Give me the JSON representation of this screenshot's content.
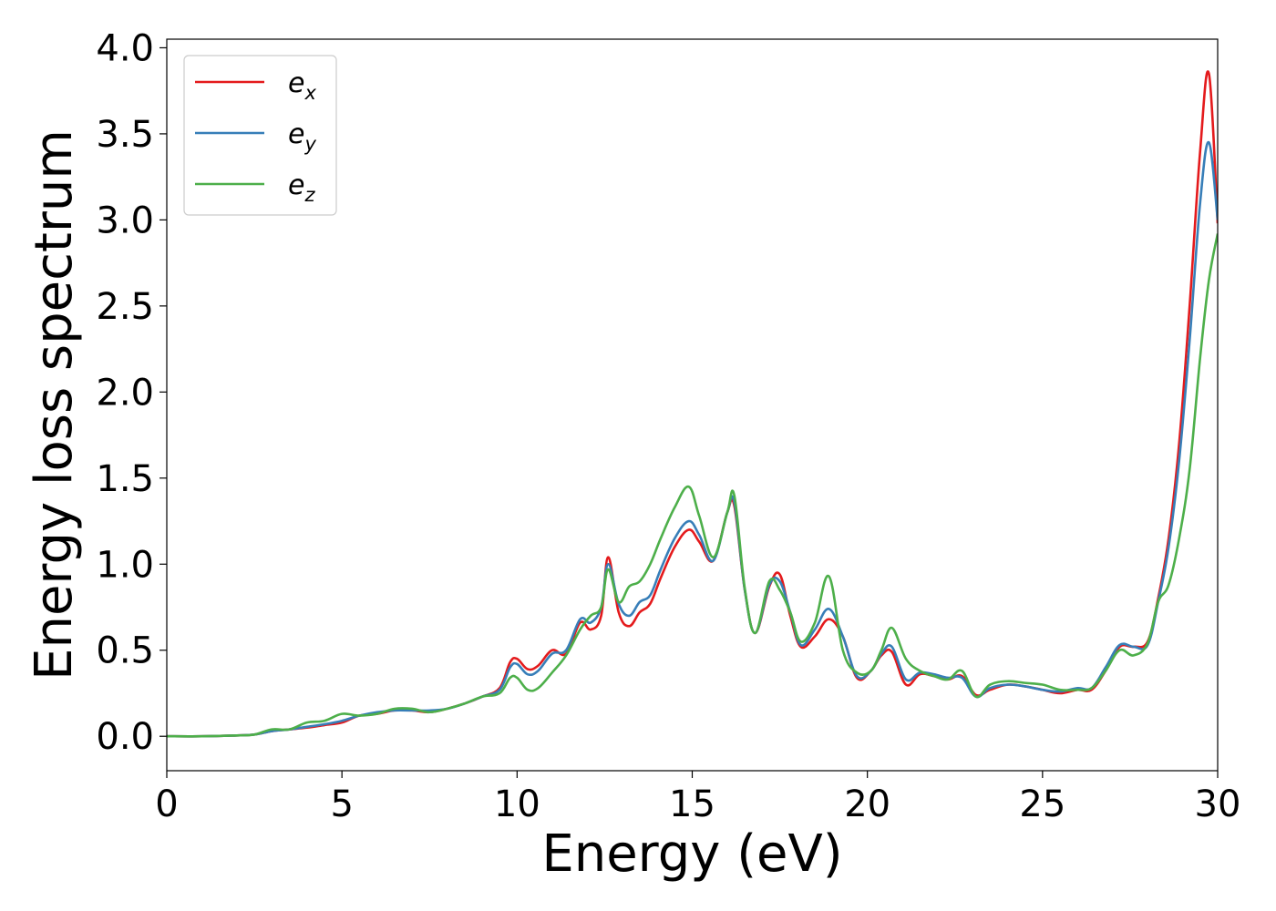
{
  "chart_data": {
    "type": "line",
    "xlabel": "Energy (eV)",
    "ylabel": "Energy loss spectrum",
    "xlim": [
      0,
      30
    ],
    "ylim": [
      -0.2,
      4.05
    ],
    "xticks": [
      0,
      5,
      10,
      15,
      20,
      25,
      30
    ],
    "yticks": [
      0.0,
      0.5,
      1.0,
      1.5,
      2.0,
      2.5,
      3.0,
      3.5,
      4.0
    ],
    "xtick_labels": [
      "0",
      "5",
      "10",
      "15",
      "20",
      "25",
      "30"
    ],
    "ytick_labels": [
      "0.0",
      "0.5",
      "1.0",
      "1.5",
      "2.0",
      "2.5",
      "3.0",
      "3.5",
      "4.0"
    ],
    "grid": false,
    "legend_position": "upper-left",
    "series": [
      {
        "name": "e",
        "subscript": "x",
        "color": "#e41a1c",
        "x": [
          0,
          1,
          2,
          2.5,
          3,
          3.5,
          4,
          4.5,
          5,
          5.5,
          6,
          6.5,
          7,
          7.5,
          8,
          8.5,
          9,
          9.5,
          9.8,
          10,
          10.3,
          10.6,
          11,
          11.4,
          11.8,
          12.1,
          12.4,
          12.6,
          12.9,
          13.2,
          13.5,
          13.8,
          14.1,
          14.5,
          14.9,
          15.2,
          15.6,
          16.0,
          16.2,
          16.5,
          16.8,
          17.2,
          17.5,
          17.8,
          18.1,
          18.5,
          18.9,
          19.3,
          19.7,
          20.1,
          20.4,
          20.7,
          21.1,
          21.5,
          21.9,
          22.3,
          22.7,
          23.1,
          23.5,
          24.0,
          24.5,
          25.0,
          25.5,
          26.0,
          26.4,
          26.8,
          27.2,
          27.6,
          28.0,
          28.3,
          28.6,
          28.9,
          29.2,
          29.5,
          29.75,
          30.0
        ],
        "y": [
          0.0,
          0.0,
          0.005,
          0.01,
          0.03,
          0.04,
          0.05,
          0.065,
          0.08,
          0.12,
          0.13,
          0.15,
          0.15,
          0.14,
          0.16,
          0.19,
          0.23,
          0.28,
          0.43,
          0.45,
          0.39,
          0.41,
          0.5,
          0.48,
          0.66,
          0.62,
          0.7,
          1.04,
          0.72,
          0.64,
          0.72,
          0.77,
          0.92,
          1.1,
          1.2,
          1.13,
          1.02,
          1.3,
          1.34,
          0.85,
          0.6,
          0.87,
          0.94,
          0.7,
          0.52,
          0.58,
          0.68,
          0.58,
          0.34,
          0.38,
          0.47,
          0.49,
          0.3,
          0.36,
          0.35,
          0.33,
          0.35,
          0.24,
          0.27,
          0.3,
          0.29,
          0.27,
          0.25,
          0.27,
          0.27,
          0.38,
          0.52,
          0.52,
          0.55,
          0.8,
          1.15,
          1.7,
          2.5,
          3.4,
          3.85,
          2.98
        ]
      },
      {
        "name": "e",
        "subscript": "y",
        "color": "#377eb8",
        "x": [
          0,
          1,
          2,
          2.5,
          3,
          3.5,
          4,
          4.5,
          5,
          5.5,
          6,
          6.5,
          7,
          7.5,
          8,
          8.5,
          9,
          9.5,
          9.8,
          10,
          10.3,
          10.6,
          11,
          11.4,
          11.8,
          12.1,
          12.4,
          12.6,
          12.9,
          13.2,
          13.5,
          13.8,
          14.1,
          14.5,
          14.9,
          15.2,
          15.6,
          16.0,
          16.2,
          16.5,
          16.8,
          17.2,
          17.5,
          17.8,
          18.1,
          18.5,
          18.9,
          19.3,
          19.7,
          20.1,
          20.4,
          20.7,
          21.1,
          21.5,
          21.9,
          22.3,
          22.7,
          23.1,
          23.5,
          24.0,
          24.5,
          25.0,
          25.5,
          26.0,
          26.4,
          26.8,
          27.2,
          27.6,
          28.0,
          28.3,
          28.6,
          28.9,
          29.2,
          29.5,
          29.75,
          30.0
        ],
        "y": [
          0.0,
          0.0,
          0.005,
          0.01,
          0.03,
          0.04,
          0.055,
          0.07,
          0.09,
          0.12,
          0.14,
          0.15,
          0.15,
          0.15,
          0.16,
          0.19,
          0.23,
          0.27,
          0.4,
          0.42,
          0.36,
          0.38,
          0.48,
          0.5,
          0.68,
          0.66,
          0.75,
          1.0,
          0.77,
          0.7,
          0.78,
          0.82,
          0.97,
          1.15,
          1.25,
          1.17,
          1.02,
          1.3,
          1.36,
          0.85,
          0.6,
          0.88,
          0.9,
          0.72,
          0.53,
          0.62,
          0.74,
          0.58,
          0.35,
          0.38,
          0.48,
          0.52,
          0.33,
          0.37,
          0.36,
          0.34,
          0.34,
          0.23,
          0.28,
          0.3,
          0.29,
          0.27,
          0.26,
          0.28,
          0.28,
          0.4,
          0.53,
          0.52,
          0.53,
          0.78,
          1.1,
          1.6,
          2.3,
          3.1,
          3.45,
          3.0
        ]
      },
      {
        "name": "e",
        "subscript": "z",
        "color": "#4daf4a",
        "x": [
          0,
          1,
          2,
          2.5,
          3,
          3.5,
          4,
          4.5,
          5,
          5.5,
          6,
          6.5,
          7,
          7.5,
          8,
          8.5,
          9,
          9.5,
          9.8,
          10,
          10.3,
          10.6,
          11,
          11.4,
          11.8,
          12.1,
          12.4,
          12.6,
          12.9,
          13.2,
          13.5,
          13.8,
          14.1,
          14.5,
          14.9,
          15.2,
          15.6,
          16.0,
          16.2,
          16.5,
          16.8,
          17.2,
          17.5,
          17.8,
          18.1,
          18.5,
          18.9,
          19.3,
          19.7,
          20.1,
          20.4,
          20.7,
          21.1,
          21.5,
          21.9,
          22.3,
          22.7,
          23.1,
          23.5,
          24.0,
          24.5,
          25.0,
          25.5,
          26.0,
          26.4,
          26.8,
          27.2,
          27.6,
          28.0,
          28.3,
          28.6,
          28.9,
          29.2,
          29.5,
          29.75,
          30.0
        ],
        "y": [
          0.0,
          0.0,
          0.005,
          0.01,
          0.04,
          0.04,
          0.08,
          0.09,
          0.13,
          0.12,
          0.13,
          0.16,
          0.16,
          0.14,
          0.16,
          0.19,
          0.23,
          0.25,
          0.34,
          0.34,
          0.27,
          0.28,
          0.37,
          0.47,
          0.62,
          0.7,
          0.75,
          0.97,
          0.78,
          0.87,
          0.9,
          1.0,
          1.15,
          1.33,
          1.45,
          1.28,
          1.04,
          1.3,
          1.4,
          0.86,
          0.6,
          0.9,
          0.85,
          0.72,
          0.55,
          0.66,
          0.93,
          0.5,
          0.37,
          0.38,
          0.5,
          0.63,
          0.45,
          0.38,
          0.35,
          0.33,
          0.38,
          0.23,
          0.3,
          0.32,
          0.31,
          0.3,
          0.27,
          0.27,
          0.28,
          0.38,
          0.5,
          0.47,
          0.54,
          0.78,
          0.88,
          1.15,
          1.55,
          2.2,
          2.65,
          2.92
        ]
      }
    ]
  }
}
